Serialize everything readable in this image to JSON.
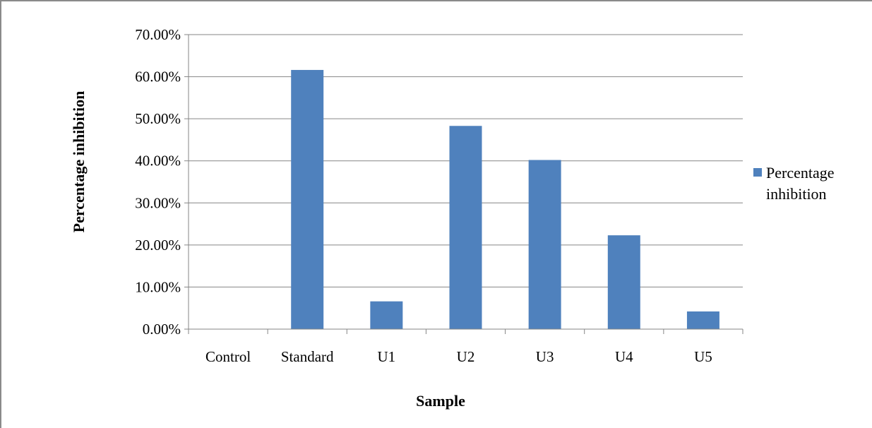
{
  "chart_data": {
    "type": "bar",
    "categories": [
      "Control",
      "Standard",
      "U1",
      "U2",
      "U3",
      "U4",
      "U5"
    ],
    "series": [
      {
        "name": "Percentage inhibition",
        "values": [
          0.0,
          61.6,
          6.6,
          48.3,
          40.2,
          22.3,
          4.2
        ]
      }
    ],
    "ylim": [
      0,
      70
    ],
    "yticks": [
      "0.00%",
      "10.00%",
      "20.00%",
      "30.00%",
      "40.00%",
      "50.00%",
      "60.00%",
      "70.00%"
    ],
    "xlabel": "Sample",
    "ylabel": "Percentage inhibition",
    "legend": {
      "position": "right",
      "label_lines": [
        "Percentage",
        "inhibition"
      ]
    },
    "grid": true,
    "colors": {
      "bar": "#4f81bd",
      "grid": "#868686",
      "axis": "#868686"
    }
  }
}
